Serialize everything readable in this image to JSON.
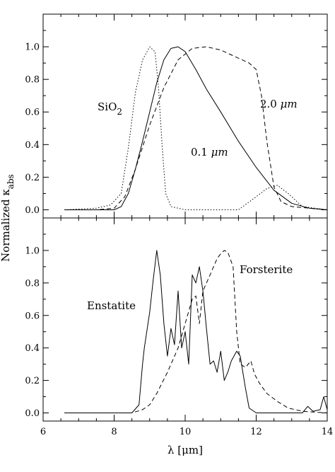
{
  "chart_data": [
    {
      "type": "line",
      "panel": "top",
      "xlim": [
        6,
        14
      ],
      "ylim": [
        -0.05,
        1.2
      ],
      "yticks": [
        0.0,
        0.2,
        0.4,
        0.6,
        0.8,
        1.0
      ],
      "ytick_labels": [
        "0.0",
        "0.2",
        "0.4",
        "0.6",
        "0.8",
        "1.0"
      ],
      "grid": false,
      "series": [
        {
          "name": "0.1 μm",
          "style": "solid",
          "x": [
            6.6,
            7.5,
            8.0,
            8.2,
            8.4,
            8.6,
            8.8,
            9.0,
            9.2,
            9.4,
            9.6,
            9.8,
            10.0,
            10.3,
            10.6,
            11.0,
            11.5,
            12.0,
            12.5,
            13.0,
            13.5,
            14.0
          ],
          "y": [
            0.0,
            0.0,
            0.0,
            0.02,
            0.1,
            0.25,
            0.42,
            0.6,
            0.78,
            0.92,
            0.99,
            1.0,
            0.97,
            0.86,
            0.74,
            0.6,
            0.42,
            0.26,
            0.12,
            0.04,
            0.01,
            0.0
          ]
        },
        {
          "name": "2.0 μm",
          "style": "dashed",
          "x": [
            6.6,
            7.5,
            8.0,
            8.3,
            8.6,
            9.0,
            9.4,
            9.8,
            10.2,
            10.6,
            11.0,
            11.4,
            11.8,
            12.0,
            12.15,
            12.3,
            12.5,
            12.7,
            13.0,
            13.5,
            14.0
          ],
          "y": [
            0.0,
            0.0,
            0.01,
            0.08,
            0.25,
            0.52,
            0.75,
            0.92,
            0.99,
            1.0,
            0.98,
            0.94,
            0.9,
            0.86,
            0.7,
            0.42,
            0.14,
            0.05,
            0.02,
            0.01,
            0.0
          ]
        },
        {
          "name": "SiO2",
          "style": "dotted",
          "x": [
            6.6,
            7.5,
            7.9,
            8.2,
            8.4,
            8.6,
            8.8,
            9.0,
            9.15,
            9.25,
            9.35,
            9.45,
            9.6,
            10.0,
            11.0,
            11.5,
            12.0,
            12.3,
            12.6,
            12.9,
            13.3,
            14.0
          ],
          "y": [
            0.0,
            0.01,
            0.03,
            0.1,
            0.38,
            0.72,
            0.92,
            1.0,
            0.97,
            0.75,
            0.4,
            0.1,
            0.02,
            0.0,
            0.0,
            0.0,
            0.08,
            0.13,
            0.15,
            0.1,
            0.02,
            0.0
          ]
        }
      ],
      "annotations": [
        "SiO",
        "2",
        "2.0 ",
        "μm",
        "0.1 ",
        "μm"
      ]
    },
    {
      "type": "line",
      "panel": "bottom",
      "xlim": [
        6,
        14
      ],
      "ylim": [
        -0.05,
        1.2
      ],
      "yticks": [
        0.0,
        0.2,
        0.4,
        0.6,
        0.8,
        1.0
      ],
      "ytick_labels": [
        "0.0",
        "0.2",
        "0.4",
        "0.6",
        "0.8",
        "1.0"
      ],
      "xticks": [
        6,
        8,
        10,
        12,
        14
      ],
      "xtick_labels": [
        "6",
        "8",
        "10",
        "12",
        "14"
      ],
      "xlabel": "λ [μm]",
      "ylabel": "Normalized κabs",
      "grid": false,
      "series": [
        {
          "name": "Enstatite",
          "style": "solid",
          "x": [
            6.6,
            8.5,
            8.7,
            8.8,
            8.85,
            9.0,
            9.1,
            9.2,
            9.3,
            9.4,
            9.5,
            9.6,
            9.7,
            9.8,
            9.9,
            10.0,
            10.1,
            10.2,
            10.3,
            10.4,
            10.5,
            10.6,
            10.7,
            10.8,
            10.9,
            11.0,
            11.1,
            11.2,
            11.3,
            11.45,
            11.55,
            11.7,
            11.8,
            12.0,
            13.3,
            13.45,
            13.6,
            13.8,
            13.9,
            14.0
          ],
          "y": [
            0.0,
            0.0,
            0.05,
            0.3,
            0.4,
            0.62,
            0.82,
            1.0,
            0.85,
            0.55,
            0.35,
            0.52,
            0.42,
            0.75,
            0.4,
            0.5,
            0.3,
            0.85,
            0.8,
            0.9,
            0.75,
            0.52,
            0.3,
            0.32,
            0.25,
            0.38,
            0.2,
            0.25,
            0.32,
            0.38,
            0.35,
            0.15,
            0.03,
            0.0,
            0.0,
            0.04,
            0.01,
            0.02,
            0.1,
            0.02
          ]
        },
        {
          "name": "Forsterite",
          "style": "dashed",
          "x": [
            6.6,
            8.5,
            8.8,
            9.0,
            9.2,
            9.5,
            9.8,
            10.0,
            10.2,
            10.3,
            10.4,
            10.5,
            10.7,
            10.9,
            11.0,
            11.1,
            11.2,
            11.35,
            11.45,
            11.55,
            11.7,
            11.85,
            11.95,
            12.1,
            12.3,
            12.6,
            12.9,
            13.3,
            14.0
          ],
          "y": [
            0.0,
            0.0,
            0.02,
            0.05,
            0.12,
            0.25,
            0.4,
            0.55,
            0.7,
            0.72,
            0.55,
            0.75,
            0.85,
            0.95,
            0.98,
            1.0,
            0.99,
            0.9,
            0.5,
            0.3,
            0.28,
            0.32,
            0.24,
            0.18,
            0.12,
            0.07,
            0.03,
            0.01,
            0.0
          ]
        }
      ],
      "annotations": [
        "Enstatite",
        "Forsterite"
      ]
    }
  ]
}
